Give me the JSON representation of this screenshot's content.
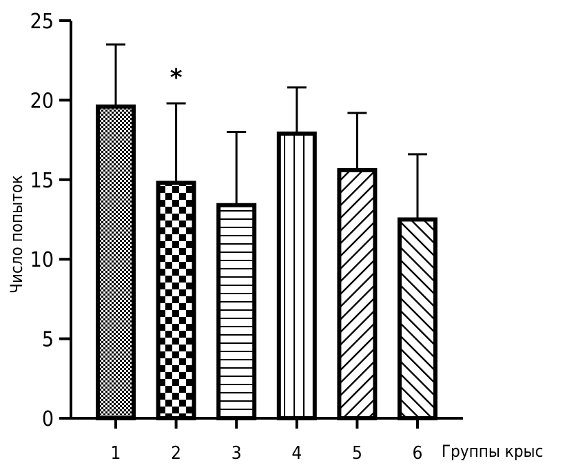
{
  "chart_data": {
    "type": "bar",
    "categories": [
      "1",
      "2",
      "3",
      "4",
      "5",
      "6"
    ],
    "values": [
      19.6,
      14.8,
      13.4,
      17.9,
      15.6,
      12.5
    ],
    "errors": [
      3.9,
      5.0,
      4.6,
      2.9,
      3.6,
      4.1
    ],
    "patterns": [
      "fine-checker",
      "coarse-checker",
      "horizontal-lines",
      "vertical-lines",
      "diagonal-lines",
      "diagonal-lines-reverse"
    ],
    "annotations": [
      {
        "category": "2",
        "text": "*"
      }
    ],
    "xlabel": "Группы крыс",
    "ylabel": "Число попыток",
    "ylim": [
      0,
      25
    ],
    "yticks": [
      0,
      5,
      10,
      15,
      20,
      25
    ],
    "grid": false,
    "colors": {
      "bar_stroke": "#000000",
      "background": "#ffffff"
    }
  }
}
